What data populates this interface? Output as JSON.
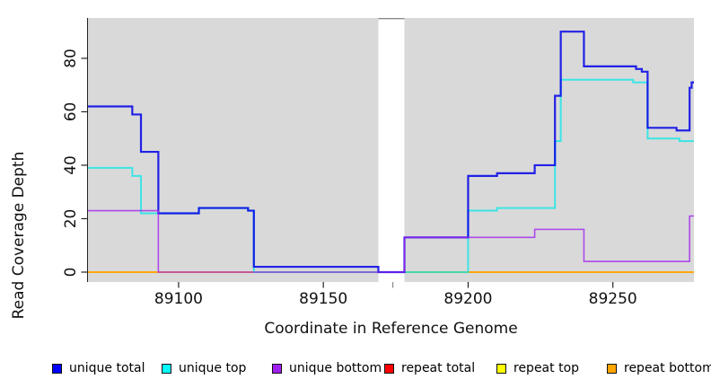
{
  "chart_data": {
    "type": "line",
    "subtype": "step-after",
    "title": "",
    "xlabel": "Coordinate in Reference Genome",
    "ylabel": "Read Coverage Depth",
    "x_ticks": [
      89100,
      89150,
      89200,
      89250
    ],
    "y_ticks": [
      0,
      20,
      40,
      60,
      80
    ],
    "xlim": [
      89068.7,
      89278
    ],
    "ylim": [
      -3.7,
      95.1
    ],
    "grid": false,
    "plot_bg_color": "#D9D9D9",
    "gap_region": {
      "x_start": 89169,
      "x_end": 89178,
      "tick": 89174,
      "border_color": "#8a8a8a"
    },
    "legend_position": "bottom",
    "draw_order": [
      3,
      4,
      5,
      1,
      0,
      2
    ],
    "series": [
      {
        "name": "unique total",
        "color": "#0000FF",
        "line_color": "#0000E8",
        "points": [
          [
            89068.7,
            62
          ],
          [
            89084,
            59
          ],
          [
            89087,
            45
          ],
          [
            89093,
            22
          ],
          [
            89107,
            24
          ],
          [
            89124,
            23
          ],
          [
            89126,
            2
          ],
          [
            89169,
            0
          ],
          [
            89178,
            13
          ],
          [
            89200,
            36
          ],
          [
            89210,
            37
          ],
          [
            89223,
            40
          ],
          [
            89230,
            66
          ],
          [
            89232,
            90
          ],
          [
            89240,
            77
          ],
          [
            89258,
            76
          ],
          [
            89260,
            75
          ],
          [
            89262,
            54
          ],
          [
            89272,
            53
          ],
          [
            89276.5,
            69
          ],
          [
            89277.2,
            71
          ]
        ]
      },
      {
        "name": "unique top",
        "color": "#00FFFF",
        "line_color": "#00E8E8",
        "points": [
          [
            89068.7,
            39
          ],
          [
            89084,
            36
          ],
          [
            89087,
            22
          ],
          [
            89107,
            24
          ],
          [
            89124,
            23
          ],
          [
            89126,
            0
          ],
          [
            89200,
            23
          ],
          [
            89210,
            24
          ],
          [
            89230,
            49
          ],
          [
            89232,
            72
          ],
          [
            89257,
            71
          ],
          [
            89262,
            50
          ],
          [
            89273,
            49
          ]
        ]
      },
      {
        "name": "unique bottom",
        "color": "#A020F0",
        "line_color": "#A020F0",
        "points": [
          [
            89068.7,
            23
          ],
          [
            89093,
            0
          ],
          [
            89178,
            13
          ],
          [
            89223,
            16
          ],
          [
            89240,
            4
          ],
          [
            89276.5,
            21
          ]
        ]
      },
      {
        "name": "repeat total",
        "color": "#FF0000",
        "line_color": "#EE0000",
        "points": [
          [
            89068.7,
            0
          ]
        ]
      },
      {
        "name": "repeat top",
        "color": "#FFFF00",
        "line_color": "#F5F500",
        "points": [
          [
            89068.7,
            0
          ]
        ]
      },
      {
        "name": "repeat bottom",
        "color": "#FFA500",
        "line_color": "#FFA500",
        "points": [
          [
            89068.7,
            0
          ]
        ]
      }
    ]
  },
  "legend": {
    "items": [
      {
        "label": "unique total",
        "color": "#0000FF"
      },
      {
        "label": "unique top",
        "color": "#00FFFF"
      },
      {
        "label": "unique bottom",
        "color": "#A020F0"
      },
      {
        "label": "repeat total",
        "color": "#FF0000"
      },
      {
        "label": "repeat top",
        "color": "#FFFF00"
      },
      {
        "label": "repeat bottom",
        "color": "#FFA500"
      }
    ]
  },
  "axes": {
    "x_title": "Coordinate in Reference Genome",
    "y_title": "Read Coverage Depth"
  }
}
